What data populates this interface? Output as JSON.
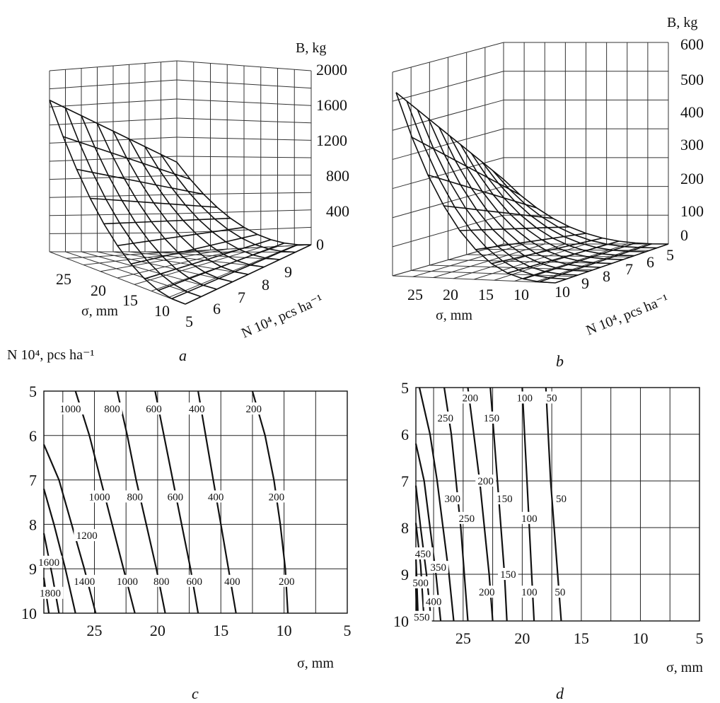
{
  "chart_data": [
    {
      "id": "a",
      "type": "surface",
      "caption": "a",
      "z_label": "B, kg",
      "sigma_label": "σ, mm",
      "n_label": "N 10⁴, pcs ha⁻¹",
      "z_ticks": [
        "2000",
        "1600",
        "1200",
        "800",
        "400",
        "0"
      ],
      "sigma_ticks": [
        "25",
        "20",
        "15",
        "10"
      ],
      "n_ticks": [
        "5",
        "6",
        "7",
        "8",
        "9"
      ],
      "zlim": [
        0,
        2000
      ],
      "sigma_range": [
        5,
        29
      ],
      "n_range": [
        5,
        10
      ],
      "surface_peak": 1800
    },
    {
      "id": "b",
      "type": "surface",
      "caption": "b",
      "z_label": "B, kg",
      "sigma_label": "σ, mm",
      "n_label": "N 10⁴, pcs ha⁻¹",
      "z_ticks": [
        "600",
        "500",
        "400",
        "300",
        "200",
        "100",
        "0"
      ],
      "sigma_ticks": [
        "25",
        "20",
        "15",
        "10"
      ],
      "n_ticks": [
        "10",
        "9",
        "8",
        "7",
        "6",
        "5"
      ],
      "zlim": [
        0,
        600
      ],
      "sigma_range": [
        5,
        29
      ],
      "n_range": [
        5,
        10
      ],
      "surface_peak": 550
    },
    {
      "id": "c",
      "type": "contour",
      "caption": "c",
      "xlabel": "σ, mm",
      "ylabel": "N 10⁴, pcs ha⁻¹",
      "x_ticks": [
        "25",
        "20",
        "15",
        "10",
        "5"
      ],
      "y_ticks": [
        "5",
        "6",
        "7",
        "8",
        "9",
        "10"
      ],
      "xlim": [
        29,
        5
      ],
      "ylim": [
        5,
        10
      ],
      "contours": [
        {
          "level": 200,
          "points": [
            [
              12.5,
              5
            ],
            [
              11.5,
              6
            ],
            [
              10.8,
              7
            ],
            [
              10.3,
              8
            ],
            [
              9.9,
              9
            ],
            [
              9.7,
              10
            ]
          ]
        },
        {
          "level": 400,
          "points": [
            [
              16.8,
              5
            ],
            [
              16.2,
              6
            ],
            [
              15.6,
              7
            ],
            [
              15.0,
              8
            ],
            [
              14.4,
              9
            ],
            [
              13.8,
              10
            ]
          ]
        },
        {
          "level": 600,
          "points": [
            [
              20.2,
              5
            ],
            [
              19.5,
              6
            ],
            [
              18.8,
              7
            ],
            [
              18.1,
              8
            ],
            [
              17.4,
              9
            ],
            [
              16.8,
              10
            ]
          ]
        },
        {
          "level": 800,
          "points": [
            [
              23.2,
              5
            ],
            [
              22.4,
              6
            ],
            [
              21.7,
              7
            ],
            [
              20.9,
              8
            ],
            [
              20.1,
              9
            ],
            [
              19.4,
              10
            ]
          ]
        },
        {
          "level": 1000,
          "points": [
            [
              26.5,
              5
            ],
            [
              25.4,
              6
            ],
            [
              24.5,
              7
            ],
            [
              23.6,
              8
            ],
            [
              22.7,
              9
            ],
            [
              21.8,
              10
            ]
          ]
        },
        {
          "level": 1200,
          "points": [
            [
              29,
              6.2
            ],
            [
              27.8,
              7
            ],
            [
              26.8,
              8
            ],
            [
              25.8,
              9
            ],
            [
              24.9,
              10
            ]
          ]
        },
        {
          "level": 1400,
          "points": [
            [
              29,
              7.2
            ],
            [
              28.2,
              8
            ],
            [
              27.3,
              9
            ],
            [
              26.5,
              10
            ]
          ]
        },
        {
          "level": 1600,
          "points": [
            [
              29,
              8.2
            ],
            [
              28.3,
              9.2
            ],
            [
              27.8,
              10
            ]
          ]
        },
        {
          "level": 1800,
          "points": [
            [
              29,
              9.2
            ],
            [
              28.6,
              10
            ]
          ]
        }
      ],
      "labels": [
        {
          "text": "1000",
          "x": 26.9,
          "y": 5.4
        },
        {
          "text": "800",
          "x": 23.6,
          "y": 5.4
        },
        {
          "text": "600",
          "x": 20.3,
          "y": 5.4
        },
        {
          "text": "400",
          "x": 16.9,
          "y": 5.4
        },
        {
          "text": "200",
          "x": 12.4,
          "y": 5.4
        },
        {
          "text": "1000",
          "x": 24.6,
          "y": 7.38
        },
        {
          "text": "800",
          "x": 21.8,
          "y": 7.38
        },
        {
          "text": "600",
          "x": 18.6,
          "y": 7.38
        },
        {
          "text": "400",
          "x": 15.4,
          "y": 7.38
        },
        {
          "text": "200",
          "x": 10.6,
          "y": 7.38
        },
        {
          "text": "1200",
          "x": 25.6,
          "y": 8.25
        },
        {
          "text": "1600",
          "x": 28.6,
          "y": 8.85
        },
        {
          "text": "1400",
          "x": 25.8,
          "y": 9.28
        },
        {
          "text": "1000",
          "x": 22.4,
          "y": 9.28
        },
        {
          "text": "800",
          "x": 19.7,
          "y": 9.28
        },
        {
          "text": "600",
          "x": 17.1,
          "y": 9.28
        },
        {
          "text": "400",
          "x": 14.1,
          "y": 9.28
        },
        {
          "text": "200",
          "x": 9.8,
          "y": 9.28
        },
        {
          "text": "1800",
          "x": 28.5,
          "y": 9.55
        }
      ]
    },
    {
      "id": "d",
      "type": "contour",
      "caption": "d",
      "xlabel": "σ, mm",
      "x_ticks": [
        "25",
        "20",
        "15",
        "10",
        "5"
      ],
      "y_ticks": [
        "5",
        "6",
        "7",
        "8",
        "9",
        "10"
      ],
      "xlim": [
        29,
        5
      ],
      "ylim": [
        5,
        10
      ],
      "contours": [
        {
          "level": 50,
          "points": [
            [
              18.0,
              5
            ],
            [
              17.8,
              6
            ],
            [
              17.6,
              7
            ],
            [
              17.3,
              8
            ],
            [
              17.0,
              9
            ],
            [
              16.7,
              10
            ]
          ]
        },
        {
          "level": 100,
          "points": [
            [
              20.0,
              5
            ],
            [
              19.8,
              6
            ],
            [
              19.6,
              7
            ],
            [
              19.4,
              8
            ],
            [
              19.2,
              9
            ],
            [
              19.0,
              10
            ]
          ]
        },
        {
          "level": 150,
          "points": [
            [
              22.7,
              5
            ],
            [
              22.4,
              6
            ],
            [
              22.1,
              7
            ],
            [
              21.8,
              8
            ],
            [
              21.5,
              9
            ],
            [
              21.3,
              10
            ]
          ]
        },
        {
          "level": 200,
          "points": [
            [
              24.6,
              5
            ],
            [
              24.1,
              6
            ],
            [
              23.6,
              7
            ],
            [
              23.2,
              8
            ],
            [
              22.8,
              9
            ],
            [
              22.5,
              10
            ]
          ]
        },
        {
          "level": 250,
          "points": [
            [
              26.6,
              5
            ],
            [
              26.0,
              6
            ],
            [
              25.6,
              7
            ],
            [
              25.2,
              8
            ],
            [
              24.9,
              9
            ],
            [
              24.6,
              10
            ]
          ]
        },
        {
          "level": 300,
          "points": [
            [
              28.7,
              5
            ],
            [
              27.8,
              6
            ],
            [
              27.2,
              7
            ],
            [
              26.7,
              8
            ],
            [
              26.2,
              9
            ],
            [
              25.8,
              10
            ]
          ]
        },
        {
          "level": 350,
          "points": [
            [
              29,
              6.2
            ],
            [
              28.3,
              7
            ],
            [
              27.8,
              8
            ],
            [
              27.3,
              9
            ],
            [
              26.9,
              10
            ]
          ]
        },
        {
          "level": 400,
          "points": [
            [
              29,
              7.1
            ],
            [
              28.6,
              8
            ],
            [
              28.1,
              9
            ],
            [
              27.7,
              10
            ]
          ]
        },
        {
          "level": 450,
          "points": [
            [
              29,
              7.9
            ],
            [
              28.6,
              8.8
            ],
            [
              28.3,
              10
            ]
          ]
        },
        {
          "level": 500,
          "points": [
            [
              29,
              8.6
            ],
            [
              28.8,
              10
            ]
          ]
        },
        {
          "level": 550,
          "points": [
            [
              29,
              9.3
            ],
            [
              28.9,
              10
            ]
          ]
        }
      ],
      "labels": [
        {
          "text": "200",
          "x": 24.4,
          "y": 5.22
        },
        {
          "text": "100",
          "x": 19.8,
          "y": 5.22
        },
        {
          "text": "50",
          "x": 17.5,
          "y": 5.22
        },
        {
          "text": "250",
          "x": 26.5,
          "y": 5.65
        },
        {
          "text": "150",
          "x": 22.6,
          "y": 5.65
        },
        {
          "text": "200",
          "x": 23.1,
          "y": 7.0
        },
        {
          "text": "300",
          "x": 25.9,
          "y": 7.38
        },
        {
          "text": "150",
          "x": 21.5,
          "y": 7.38
        },
        {
          "text": "50",
          "x": 16.7,
          "y": 7.38
        },
        {
          "text": "250",
          "x": 24.7,
          "y": 7.8
        },
        {
          "text": "100",
          "x": 19.4,
          "y": 7.8
        },
        {
          "text": "450",
          "x": 28.4,
          "y": 8.56
        },
        {
          "text": "350",
          "x": 27.1,
          "y": 8.85
        },
        {
          "text": "150",
          "x": 21.2,
          "y": 9.0
        },
        {
          "text": "500",
          "x": 28.6,
          "y": 9.18
        },
        {
          "text": "400",
          "x": 27.5,
          "y": 9.58
        },
        {
          "text": "200",
          "x": 23.0,
          "y": 9.38
        },
        {
          "text": "100",
          "x": 19.4,
          "y": 9.38
        },
        {
          "text": "50",
          "x": 16.8,
          "y": 9.38
        },
        {
          "text": "550",
          "x": 28.5,
          "y": 9.92
        }
      ]
    }
  ]
}
